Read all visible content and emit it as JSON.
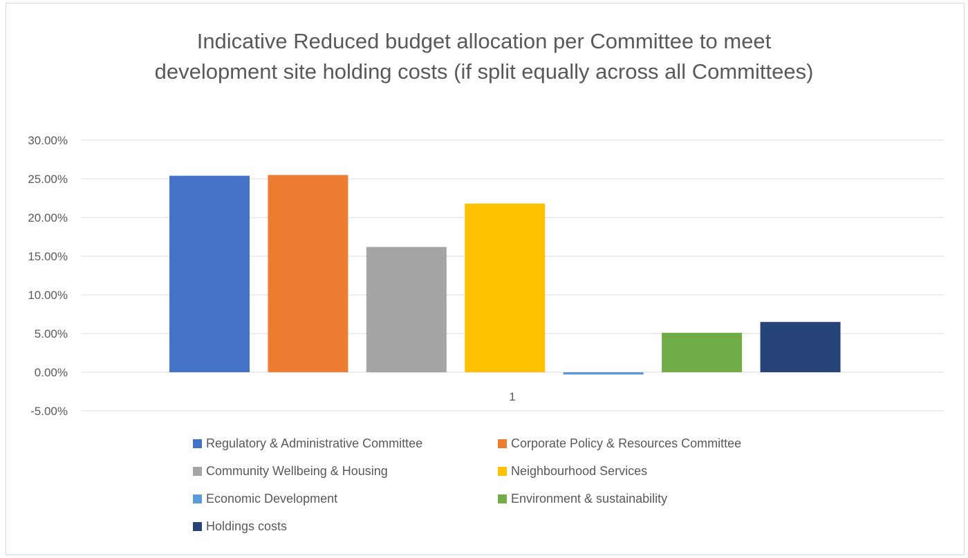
{
  "chart_data": {
    "type": "bar",
    "title": "Indicative Reduced budget allocation per Committee to meet\ndevelopment site holding costs (if split equally across all Committees)",
    "categories": [
      "1"
    ],
    "ylim": [
      -0.05,
      0.3
    ],
    "yticks": [
      0.3,
      0.25,
      0.2,
      0.15,
      0.1,
      0.05,
      0.0,
      -0.05
    ],
    "ytick_labels": [
      "30.00%",
      "25.00%",
      "20.00%",
      "15.00%",
      "10.00%",
      "5.00%",
      "0.00%",
      "-5.00%"
    ],
    "grid": true,
    "legend_position": "bottom",
    "series": [
      {
        "name": "Regulatory & Administrative Committee",
        "values": [
          0.254
        ],
        "color": "#4472c4"
      },
      {
        "name": "Corporate Policy & Resources Committee",
        "values": [
          0.255
        ],
        "color": "#ed7d31"
      },
      {
        "name": "Community Wellbeing & Housing",
        "values": [
          0.162
        ],
        "color": "#a5a5a5"
      },
      {
        "name": "Neighbourhood Services",
        "values": [
          0.218
        ],
        "color": "#ffc000"
      },
      {
        "name": "Economic Development",
        "values": [
          -0.003
        ],
        "color": "#5b9bd5"
      },
      {
        "name": "Environment & sustainability",
        "values": [
          0.051
        ],
        "color": "#70ad47"
      },
      {
        "name": "Holdings costs",
        "values": [
          0.065
        ],
        "color": "#264478"
      }
    ]
  }
}
